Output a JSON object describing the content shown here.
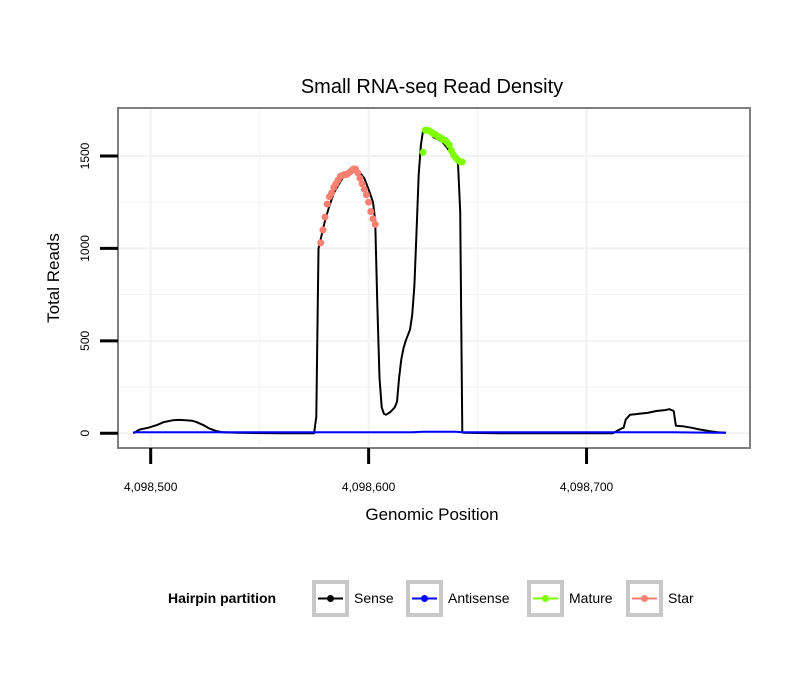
{
  "chart_data": {
    "type": "line",
    "title": "Small RNA-seq Read Density",
    "xlabel": "Genomic Position",
    "ylabel": "Total Reads",
    "xlim": [
      4098485,
      4098775
    ],
    "ylim": [
      -80,
      1760
    ],
    "x_ticks": [
      {
        "value": 4098500,
        "label": "4,098,500"
      },
      {
        "value": 4098600,
        "label": "4,098,600"
      },
      {
        "value": 4098700,
        "label": "4,098,700"
      }
    ],
    "y_ticks": [
      {
        "value": 0,
        "label": "0"
      },
      {
        "value": 500,
        "label": "500"
      },
      {
        "value": 1000,
        "label": "1000"
      },
      {
        "value": 1500,
        "label": "1500"
      }
    ],
    "legend": {
      "title": "Hairpin partition",
      "position": "bottom",
      "items": [
        {
          "name": "Sense",
          "color": "#000000"
        },
        {
          "name": "Antisense",
          "color": "#0000ff"
        },
        {
          "name": "Mature",
          "color": "#7fff00"
        },
        {
          "name": "Star",
          "color": "#fa8072"
        }
      ]
    },
    "series": [
      {
        "name": "Sense",
        "color": "#000000",
        "markers": false,
        "x": [
          4098492,
          4098495,
          4098499,
          4098503,
          4098506,
          4098510,
          4098513,
          4098516,
          4098519,
          4098521,
          4098524,
          4098527,
          4098530,
          4098533,
          4098540,
          4098560,
          4098575,
          4098576,
          4098577,
          4098578,
          4098580,
          4098582,
          4098584,
          4098586,
          4098588,
          4098590,
          4098592,
          4098594,
          4098596,
          4098598,
          4098600,
          4098602,
          4098603,
          4098604,
          4098605,
          4098606,
          4098607,
          4098608,
          4098610,
          4098612,
          4098613,
          4098614,
          4098615,
          4098616,
          4098617,
          4098618,
          4098619,
          4098620,
          4098621,
          4098622,
          4098623,
          4098624,
          4098625,
          4098626,
          4098628,
          4098630,
          4098632,
          4098634,
          4098636,
          4098638,
          4098640,
          4098641,
          4098642,
          4098643,
          4098644,
          4098660,
          4098680,
          4098700,
          4098712,
          4098716,
          4098717,
          4098718,
          4098720,
          4098724,
          4098728,
          4098732,
          4098736,
          4098738,
          4098740,
          4098741,
          4098744,
          4098748,
          4098752,
          4098756,
          4098760,
          4098764
        ],
        "y": [
          0,
          20,
          30,
          45,
          60,
          70,
          72,
          70,
          68,
          60,
          45,
          25,
          12,
          5,
          2,
          0,
          0,
          90,
          1000,
          1050,
          1150,
          1230,
          1300,
          1340,
          1380,
          1400,
          1405,
          1420,
          1410,
          1380,
          1320,
          1250,
          1150,
          700,
          300,
          140,
          105,
          100,
          115,
          140,
          170,
          300,
          400,
          460,
          500,
          530,
          560,
          640,
          800,
          1100,
          1400,
          1560,
          1640,
          1635,
          1625,
          1600,
          1590,
          1575,
          1545,
          1510,
          1475,
          1460,
          1200,
          5,
          2,
          0,
          0,
          0,
          0,
          25,
          30,
          75,
          100,
          105,
          110,
          120,
          125,
          130,
          120,
          40,
          38,
          30,
          20,
          12,
          5,
          2
        ],
        "lw": 2
      },
      {
        "name": "Antisense",
        "color": "#0000ff",
        "markers": false,
        "x": [
          4098492,
          4098530,
          4098560,
          4098600,
          4098620,
          4098625,
          4098640,
          4098643,
          4098660,
          4098700,
          4098740,
          4098760,
          4098764
        ],
        "y": [
          5,
          5,
          5,
          5,
          5,
          8,
          8,
          5,
          5,
          5,
          5,
          2,
          2
        ],
        "lw": 2
      },
      {
        "name": "Mature",
        "color": "#7fff00",
        "markers": true,
        "x": [
          4098625,
          4098626,
          4098627,
          4098628,
          4098629,
          4098630,
          4098631,
          4098632,
          4098633,
          4098634,
          4098635,
          4098636,
          4098637,
          4098638,
          4098639,
          4098640,
          4098641,
          4098642,
          4098643
        ],
        "y": [
          1520,
          1640,
          1640,
          1635,
          1628,
          1620,
          1612,
          1605,
          1600,
          1590,
          1585,
          1575,
          1560,
          1530,
          1505,
          1490,
          1478,
          1470,
          1468
        ]
      },
      {
        "name": "Star",
        "color": "#fa8072",
        "markers": true,
        "x": [
          4098578,
          4098579,
          4098580,
          4098581,
          4098582,
          4098583,
          4098584,
          4098585,
          4098586,
          4098587,
          4098588,
          4098589,
          4098590,
          4098591,
          4098592,
          4098593,
          4098594,
          4098595,
          4098596,
          4098597,
          4098598,
          4098599,
          4098600,
          4098601,
          4098602,
          4098603
        ],
        "y": [
          1030,
          1100,
          1170,
          1240,
          1280,
          1300,
          1330,
          1350,
          1370,
          1390,
          1395,
          1400,
          1400,
          1410,
          1420,
          1430,
          1430,
          1410,
          1380,
          1350,
          1320,
          1290,
          1250,
          1200,
          1160,
          1130
        ]
      }
    ]
  }
}
